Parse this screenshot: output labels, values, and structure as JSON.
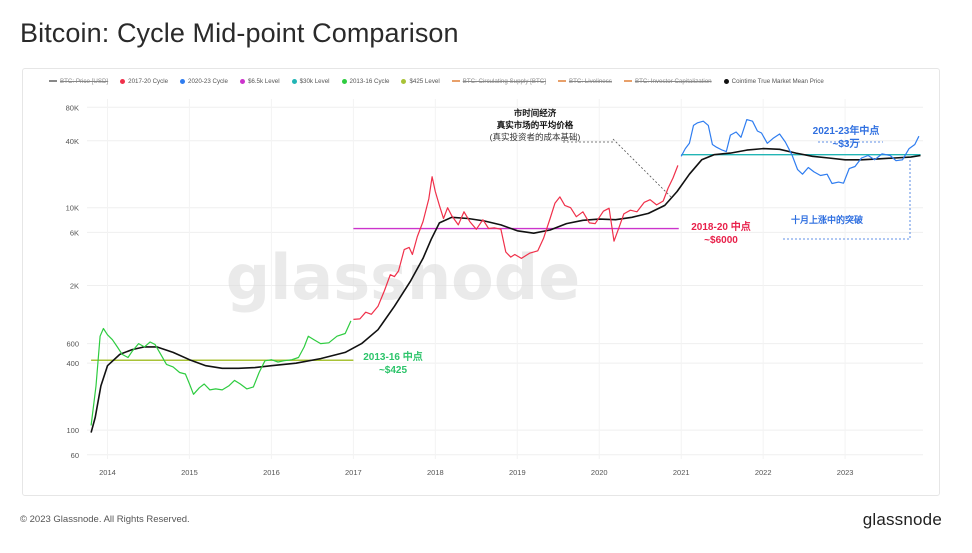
{
  "title": "Bitcoin: Cycle Mid-point Comparison",
  "footer": {
    "copyright": "© 2023 Glassnode. All Rights Reserved.",
    "logo": "glassnode"
  },
  "watermark": "glassnode",
  "colors": {
    "price": "#888888",
    "cycle_2017": "#f0304a",
    "cycle_2020": "#2f7df0",
    "level_6500": "#cc33cc",
    "level_30k": "#22b5b5",
    "cycle_2013": "#2ecc40",
    "level_425": "#a8c236",
    "crossed": "#e8a06a",
    "true_mean": "#111111",
    "cycle_2017_text": "#e8204a",
    "cycle_2020_text": "#2f6fe0",
    "cycle_2013_text": "#2cc46a"
  },
  "legend": [
    {
      "label": "BTC: Price [USD]",
      "color": "#888888",
      "disabled": true
    },
    {
      "label": "2017-20 Cycle",
      "color": "#f0304a",
      "disabled": false
    },
    {
      "label": "2020-23 Cycle",
      "color": "#2f7df0",
      "disabled": false
    },
    {
      "label": "$6.5k Level",
      "color": "#cc33cc",
      "disabled": false
    },
    {
      "label": "$30k Level",
      "color": "#22b5b5",
      "disabled": false
    },
    {
      "label": "2013-16 Cycle",
      "color": "#2ecc40",
      "disabled": false
    },
    {
      "label": "$425 Level",
      "color": "#a8c236",
      "disabled": false
    },
    {
      "label": "BTC: Circulating Supply [BTC]",
      "color": "#e8a06a",
      "disabled": true
    },
    {
      "label": "BTC: Liveliness",
      "color": "#e8a06a",
      "disabled": true
    },
    {
      "label": "BTC: Investor Capitalization",
      "color": "#e8a06a",
      "disabled": true
    },
    {
      "label": "Cointime True Market Mean Price",
      "color": "#111111",
      "disabled": false
    }
  ],
  "chart_data": {
    "type": "line",
    "title": "Bitcoin: Cycle Mid-point Comparison",
    "y_scale": "log",
    "ylim": [
      55,
      95000
    ],
    "xlim": [
      2013.75,
      2023.95
    ],
    "x_ticks": [
      {
        "value": 2014,
        "label": "2014"
      },
      {
        "value": 2015,
        "label": "2015"
      },
      {
        "value": 2016,
        "label": "2016"
      },
      {
        "value": 2017,
        "label": "2017"
      },
      {
        "value": 2018,
        "label": "2018"
      },
      {
        "value": 2019,
        "label": "2019"
      },
      {
        "value": 2020,
        "label": "2020"
      },
      {
        "value": 2021,
        "label": "2021"
      },
      {
        "value": 2022,
        "label": "2022"
      },
      {
        "value": 2023,
        "label": "2023"
      }
    ],
    "y_ticks": [
      {
        "value": 60,
        "label": "60"
      },
      {
        "value": 100,
        "label": "100"
      },
      {
        "value": 400,
        "label": "400"
      },
      {
        "value": 600,
        "label": "600"
      },
      {
        "value": 2000,
        "label": "2K"
      },
      {
        "value": 6000,
        "label": "6K"
      },
      {
        "value": 10000,
        "label": "10K"
      },
      {
        "value": 40000,
        "label": "40K"
      },
      {
        "value": 80000,
        "label": "80K"
      }
    ],
    "grid": true,
    "legend_position": "top",
    "series": [
      {
        "name": "2013-16 Cycle",
        "color_key": "cycle_2013",
        "points": [
          [
            2013.8,
            110
          ],
          [
            2013.86,
            250
          ],
          [
            2013.91,
            700
          ],
          [
            2013.95,
            820
          ],
          [
            2014.0,
            720
          ],
          [
            2014.06,
            650
          ],
          [
            2014.12,
            560
          ],
          [
            2014.18,
            480
          ],
          [
            2014.25,
            450
          ],
          [
            2014.3,
            510
          ],
          [
            2014.38,
            600
          ],
          [
            2014.45,
            560
          ],
          [
            2014.52,
            620
          ],
          [
            2014.58,
            590
          ],
          [
            2014.65,
            480
          ],
          [
            2014.72,
            390
          ],
          [
            2014.8,
            370
          ],
          [
            2014.88,
            330
          ],
          [
            2014.95,
            320
          ],
          [
            2015.0,
            260
          ],
          [
            2015.05,
            210
          ],
          [
            2015.12,
            240
          ],
          [
            2015.18,
            260
          ],
          [
            2015.25,
            230
          ],
          [
            2015.32,
            235
          ],
          [
            2015.4,
            230
          ],
          [
            2015.48,
            250
          ],
          [
            2015.55,
            280
          ],
          [
            2015.62,
            260
          ],
          [
            2015.7,
            235
          ],
          [
            2015.78,
            245
          ],
          [
            2015.85,
            330
          ],
          [
            2015.92,
            420
          ],
          [
            2016.0,
            430
          ],
          [
            2016.08,
            410
          ],
          [
            2016.15,
            420
          ],
          [
            2016.25,
            430
          ],
          [
            2016.33,
            450
          ],
          [
            2016.4,
            560
          ],
          [
            2016.45,
            700
          ],
          [
            2016.52,
            650
          ],
          [
            2016.6,
            600
          ],
          [
            2016.7,
            610
          ],
          [
            2016.8,
            700
          ],
          [
            2016.9,
            740
          ],
          [
            2016.97,
            960
          ]
        ]
      },
      {
        "name": "2017-20 Cycle",
        "color_key": "cycle_2017",
        "points": [
          [
            2017.0,
            990
          ],
          [
            2017.08,
            1000
          ],
          [
            2017.15,
            1150
          ],
          [
            2017.22,
            1100
          ],
          [
            2017.3,
            1300
          ],
          [
            2017.38,
            1800
          ],
          [
            2017.45,
            2500
          ],
          [
            2017.5,
            2400
          ],
          [
            2017.55,
            2700
          ],
          [
            2017.62,
            4200
          ],
          [
            2017.68,
            4400
          ],
          [
            2017.72,
            3800
          ],
          [
            2017.78,
            5500
          ],
          [
            2017.85,
            7500
          ],
          [
            2017.92,
            12000
          ],
          [
            2017.96,
            19000
          ],
          [
            2018.0,
            14000
          ],
          [
            2018.05,
            10500
          ],
          [
            2018.1,
            8000
          ],
          [
            2018.15,
            10000
          ],
          [
            2018.2,
            8500
          ],
          [
            2018.28,
            7000
          ],
          [
            2018.35,
            9200
          ],
          [
            2018.42,
            7500
          ],
          [
            2018.5,
            6400
          ],
          [
            2018.58,
            7800
          ],
          [
            2018.65,
            6500
          ],
          [
            2018.72,
            6600
          ],
          [
            2018.8,
            6400
          ],
          [
            2018.86,
            4000
          ],
          [
            2018.92,
            3600
          ],
          [
            2018.97,
            3800
          ],
          [
            2019.05,
            3500
          ],
          [
            2019.15,
            3900
          ],
          [
            2019.25,
            4100
          ],
          [
            2019.32,
            5300
          ],
          [
            2019.4,
            8000
          ],
          [
            2019.46,
            11000
          ],
          [
            2019.52,
            12500
          ],
          [
            2019.58,
            10500
          ],
          [
            2019.65,
            10000
          ],
          [
            2019.72,
            8300
          ],
          [
            2019.8,
            9200
          ],
          [
            2019.88,
            7300
          ],
          [
            2019.95,
            7200
          ],
          [
            2020.05,
            9300
          ],
          [
            2020.12,
            9900
          ],
          [
            2020.18,
            5000
          ],
          [
            2020.24,
            6600
          ],
          [
            2020.3,
            8800
          ],
          [
            2020.38,
            9500
          ],
          [
            2020.46,
            9200
          ],
          [
            2020.55,
            11200
          ],
          [
            2020.62,
            11800
          ],
          [
            2020.7,
            10600
          ],
          [
            2020.78,
            11500
          ],
          [
            2020.84,
            15000
          ],
          [
            2020.9,
            18500
          ],
          [
            2020.96,
            24000
          ]
        ]
      },
      {
        "name": "2020-23 Cycle",
        "color_key": "cycle_2020",
        "points": [
          [
            2021.0,
            29000
          ],
          [
            2021.05,
            34000
          ],
          [
            2021.1,
            38000
          ],
          [
            2021.15,
            55000
          ],
          [
            2021.2,
            58000
          ],
          [
            2021.27,
            60000
          ],
          [
            2021.33,
            55000
          ],
          [
            2021.38,
            37000
          ],
          [
            2021.43,
            35000
          ],
          [
            2021.5,
            33000
          ],
          [
            2021.55,
            32000
          ],
          [
            2021.6,
            45000
          ],
          [
            2021.67,
            48000
          ],
          [
            2021.73,
            43000
          ],
          [
            2021.8,
            62000
          ],
          [
            2021.87,
            60000
          ],
          [
            2021.93,
            49000
          ],
          [
            2021.98,
            47000
          ],
          [
            2022.05,
            38000
          ],
          [
            2022.12,
            42000
          ],
          [
            2022.2,
            46000
          ],
          [
            2022.27,
            39000
          ],
          [
            2022.35,
            30000
          ],
          [
            2022.42,
            22000
          ],
          [
            2022.48,
            20000
          ],
          [
            2022.55,
            23000
          ],
          [
            2022.62,
            21000
          ],
          [
            2022.7,
            19500
          ],
          [
            2022.78,
            20000
          ],
          [
            2022.84,
            16500
          ],
          [
            2022.92,
            17000
          ],
          [
            2022.98,
            16600
          ],
          [
            2023.05,
            22500
          ],
          [
            2023.12,
            23500
          ],
          [
            2023.2,
            28000
          ],
          [
            2023.28,
            29500
          ],
          [
            2023.36,
            27000
          ],
          [
            2023.45,
            30500
          ],
          [
            2023.55,
            29500
          ],
          [
            2023.62,
            26500
          ],
          [
            2023.7,
            27000
          ],
          [
            2023.78,
            34000
          ],
          [
            2023.85,
            37000
          ],
          [
            2023.9,
            44000
          ]
        ]
      },
      {
        "name": "Cointime True Market Mean Price",
        "color_key": "true_mean",
        "points": [
          [
            2013.8,
            95
          ],
          [
            2013.85,
            130
          ],
          [
            2013.92,
            250
          ],
          [
            2014.0,
            380
          ],
          [
            2014.15,
            480
          ],
          [
            2014.3,
            530
          ],
          [
            2014.45,
            560
          ],
          [
            2014.6,
            560
          ],
          [
            2014.8,
            500
          ],
          [
            2015.0,
            430
          ],
          [
            2015.2,
            380
          ],
          [
            2015.4,
            360
          ],
          [
            2015.6,
            360
          ],
          [
            2015.8,
            365
          ],
          [
            2016.0,
            380
          ],
          [
            2016.3,
            400
          ],
          [
            2016.6,
            440
          ],
          [
            2016.9,
            500
          ],
          [
            2017.1,
            600
          ],
          [
            2017.3,
            800
          ],
          [
            2017.5,
            1300
          ],
          [
            2017.7,
            2200
          ],
          [
            2017.85,
            3500
          ],
          [
            2017.95,
            5200
          ],
          [
            2018.05,
            7300
          ],
          [
            2018.2,
            8200
          ],
          [
            2018.4,
            8000
          ],
          [
            2018.6,
            7600
          ],
          [
            2018.8,
            7000
          ],
          [
            2019.0,
            6200
          ],
          [
            2019.2,
            5900
          ],
          [
            2019.4,
            6300
          ],
          [
            2019.6,
            7200
          ],
          [
            2019.8,
            7700
          ],
          [
            2020.0,
            7900
          ],
          [
            2020.2,
            7800
          ],
          [
            2020.4,
            8200
          ],
          [
            2020.6,
            8900
          ],
          [
            2020.8,
            10500
          ],
          [
            2020.95,
            14000
          ],
          [
            2021.1,
            20000
          ],
          [
            2021.25,
            27000
          ],
          [
            2021.4,
            30000
          ],
          [
            2021.6,
            31000
          ],
          [
            2021.8,
            33000
          ],
          [
            2022.0,
            34000
          ],
          [
            2022.2,
            33500
          ],
          [
            2022.4,
            31000
          ],
          [
            2022.6,
            29000
          ],
          [
            2022.8,
            28000
          ],
          [
            2023.0,
            27000
          ],
          [
            2023.2,
            27000
          ],
          [
            2023.4,
            27500
          ],
          [
            2023.6,
            28000
          ],
          [
            2023.8,
            28500
          ],
          [
            2023.92,
            29500
          ]
        ]
      }
    ],
    "reference_lines": [
      {
        "name": "$425 Level",
        "value": 425,
        "x_start": 2013.8,
        "x_end": 2017.0,
        "color_key": "level_425"
      },
      {
        "name": "$6.5k Level",
        "value": 6500,
        "x_start": 2017.0,
        "x_end": 2020.97,
        "color_key": "level_6500"
      },
      {
        "name": "$30k Level",
        "value": 30000,
        "x_start": 2021.0,
        "x_end": 2023.92,
        "color_key": "level_30k"
      }
    ],
    "annotations": {
      "mean_title_1": "市时间经济",
      "mean_title_2": "真实市场的平均价格",
      "mean_title_3": "(真实投资者的成本基础)",
      "label_2013": "2013-16 中点",
      "value_2013": "~$425",
      "label_2018": "2018-20 中点",
      "value_2018": "~$6000",
      "label_2021": "2021-23年中点",
      "value_2021": "~$3万",
      "breakout_label": "十月上涨中的突破"
    }
  }
}
